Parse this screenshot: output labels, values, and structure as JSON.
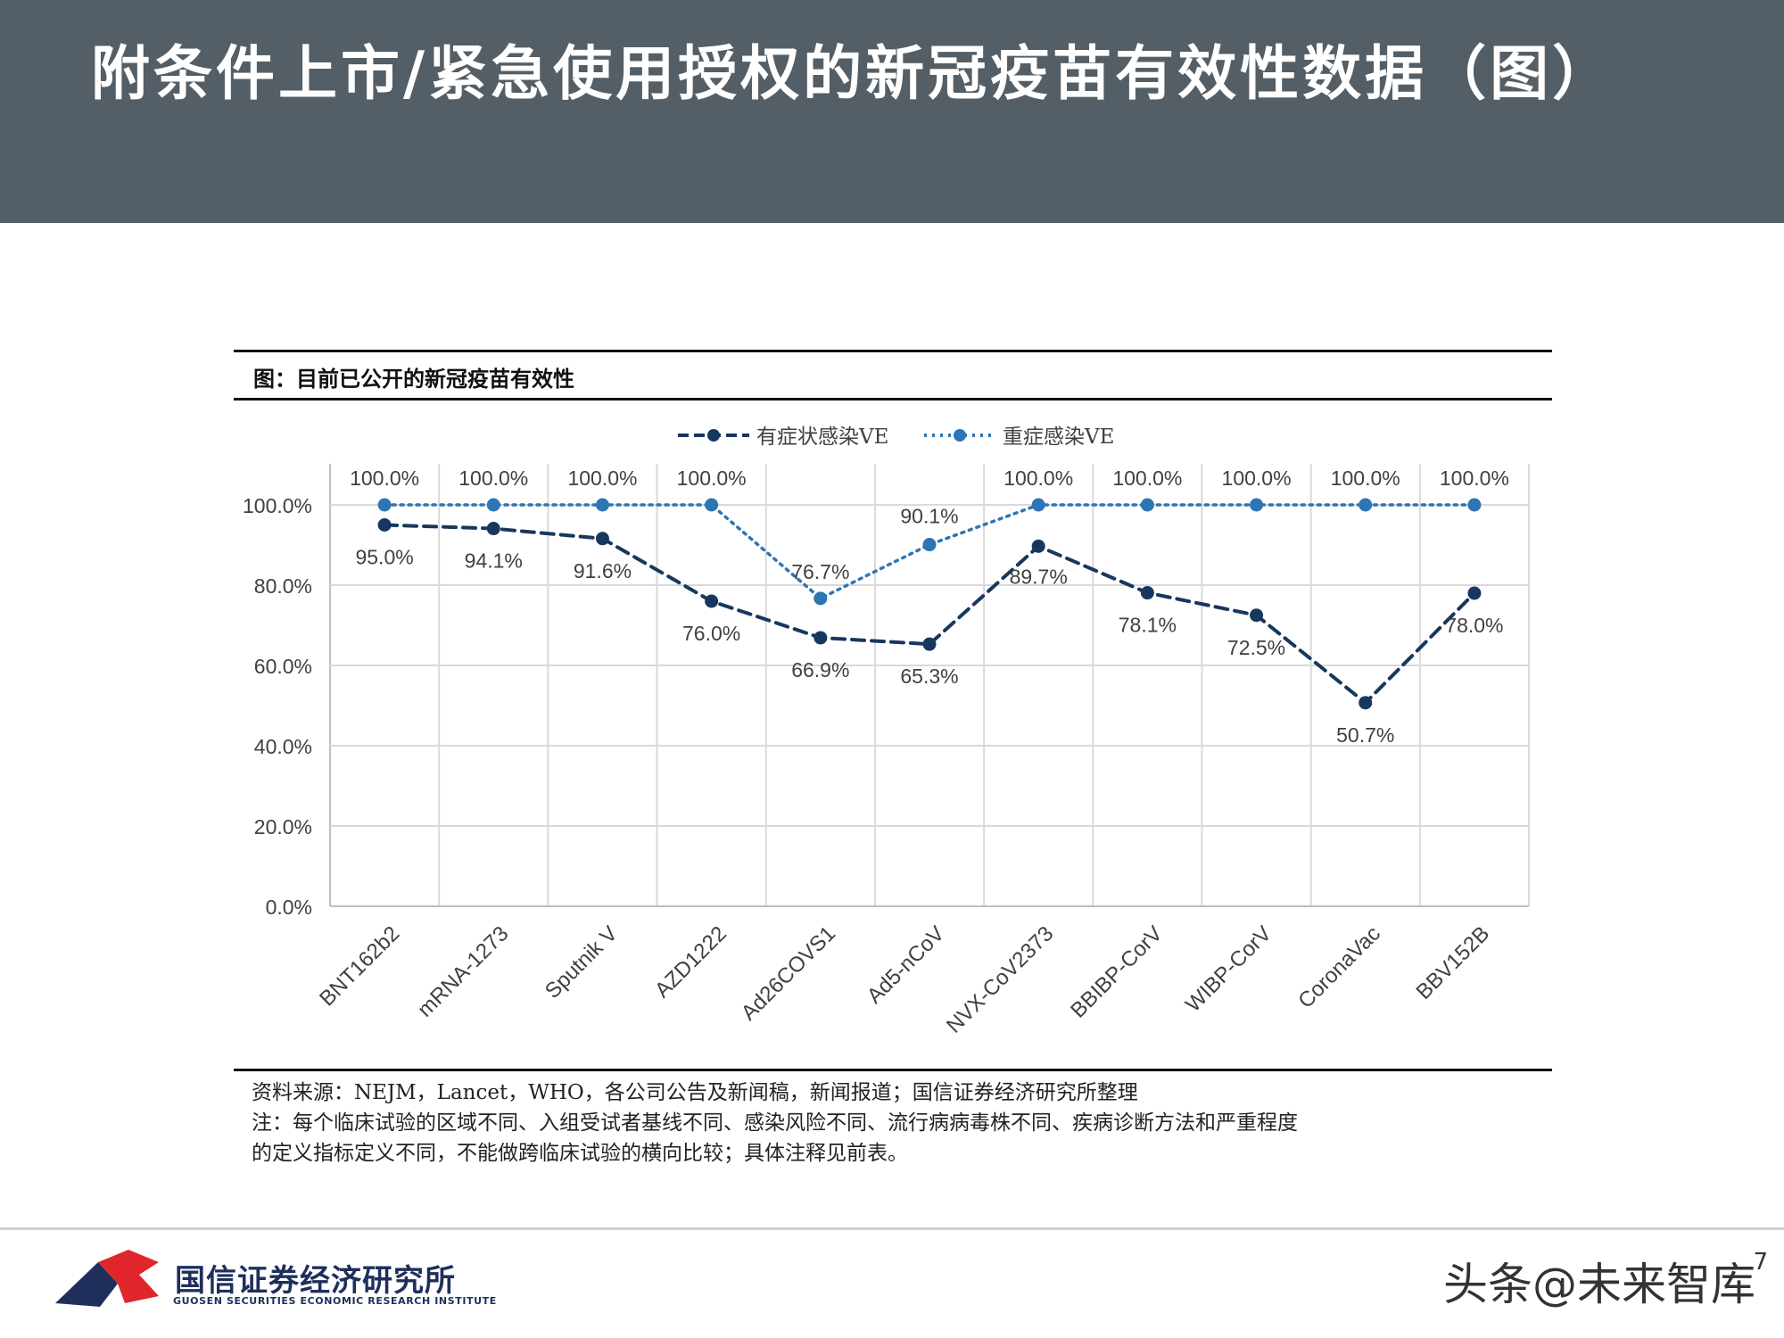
{
  "header": {
    "title": "附条件上市/紧急使用授权的新冠疫苗有效性数据（图）"
  },
  "figure": {
    "title": "图：目前已公开的新冠疫苗有效性"
  },
  "chart_data": {
    "type": "line",
    "categories": [
      "BNT162b2",
      "mRNA-1273",
      "Sputnik V",
      "AZD1222",
      "Ad26COVS1",
      "Ad5-nCoV",
      "NVX-CoV2373",
      "BBIBP-CorV",
      "WIBP-CorV",
      "CoronaVac",
      "BBV152B"
    ],
    "series": [
      {
        "name": "有症状感染VE",
        "color": "#17375e",
        "line_style": "dashed",
        "values": [
          95.0,
          94.1,
          91.6,
          76.0,
          66.9,
          65.3,
          89.7,
          78.1,
          72.5,
          50.7,
          78.0
        ],
        "labels": [
          "95.0%",
          "94.1%",
          "91.6%",
          "76.0%",
          "66.9%",
          "65.3%",
          "89.7%",
          "78.1%",
          "72.5%",
          "50.7%",
          "78.0%"
        ]
      },
      {
        "name": "重症感染VE",
        "color": "#2e75b6",
        "line_style": "dotted",
        "values": [
          100,
          100,
          100,
          100,
          76.7,
          90.1,
          100,
          100,
          100,
          100,
          100
        ],
        "labels": [
          "100.0%",
          "100.0%",
          "100.0%",
          "100.0%",
          "76.7%",
          "90.1%",
          "100.0%",
          "100.0%",
          "100.0%",
          "100.0%",
          "100.0%"
        ]
      }
    ],
    "y_ticks": [
      "0.0%",
      "20.0%",
      "40.0%",
      "60.0%",
      "80.0%",
      "100.0%"
    ],
    "ylim": [
      0,
      100
    ],
    "grid": true,
    "legend_position": "top-center"
  },
  "source": {
    "line1": "资料来源：NEJM，Lancet，WHO，各公司公告及新闻稿，新闻报道；国信证券经济研究所整理",
    "line2": "注：每个临床试验的区域不同、入组受试者基线不同、感染风险不同、流行病病毒株不同、疾病诊断方法和严重程度",
    "line3": "的定义指标定义不同，不能做跨临床试验的横向比较；具体注释见前表。"
  },
  "footer": {
    "org_name": "国信证券经济研究所",
    "org_name_en": "GUOSEN SECURITIES ECONOMIC RESEARCH INSTITUTE",
    "watermark": "头条@未来智库",
    "page_number": "7",
    "brand_red": "#e0262b",
    "brand_navy": "#1f2f5c"
  }
}
